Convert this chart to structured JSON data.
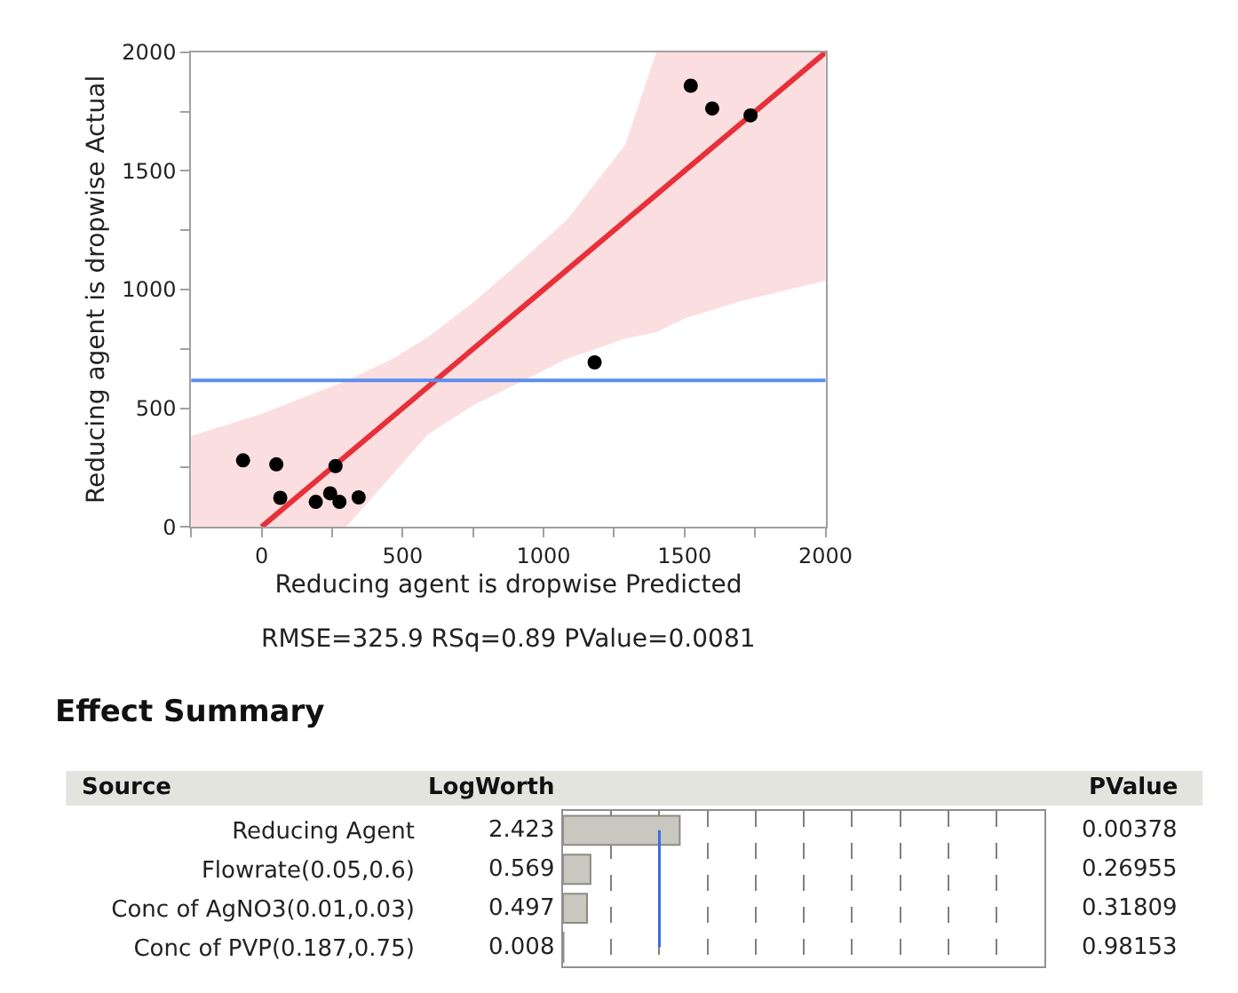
{
  "chart_data": [
    {
      "type": "scatter",
      "xlabel": "Reducing agent is dropwise Predicted",
      "ylabel": "Reducing agent is dropwise Actual",
      "annotations": [
        "RMSE=325.9 RSq=0.89 PValue=0.0081"
      ],
      "xlim": [
        -250,
        2000
      ],
      "ylim": [
        0,
        2000
      ],
      "xticks": [
        {
          "value": -250,
          "label": null
        },
        0,
        {
          "value": 250,
          "label": null
        },
        500,
        {
          "value": 750,
          "label": null
        },
        1000,
        {
          "value": 1250,
          "label": null
        },
        1500,
        {
          "value": 1750,
          "label": null
        },
        2000
      ],
      "yticks": [
        0,
        {
          "value": 250,
          "label": null
        },
        500,
        {
          "value": 750,
          "label": null
        },
        1000,
        {
          "value": 1250,
          "label": null
        },
        1500,
        {
          "value": 1750,
          "label": null
        },
        2000
      ],
      "grid": false,
      "ref_lines": [
        {
          "axis": "y",
          "value": 617,
          "color": "#5b8def"
        }
      ],
      "series": [
        {
          "type": "line",
          "color": "#e8303a",
          "marker": "none",
          "x": [
            -250,
            0,
            300,
            460,
            590,
            750,
            920,
            1080,
            1290,
            1400,
            1500,
            1700,
            2000
          ],
          "values": [
            null,
            0,
            300,
            460,
            590,
            750,
            920,
            1080,
            1290,
            1400,
            1500,
            1700,
            2000
          ],
          "lower": [
            0,
            0,
            0,
            215,
            390,
            512,
            612,
            707,
            793,
            820,
            878,
            951,
            1037
          ],
          "upper": [
            383,
            476,
            615,
            705,
            800,
            945,
            1120,
            1290,
            1610,
            2000,
            2000,
            2000,
            2000
          ]
        },
        {
          "type": "scatter",
          "color": "#000000",
          "marker": "circle",
          "x": [
            -66,
            52,
            66,
            192,
            243,
            262,
            276,
            344,
            1181,
            1522,
            1598,
            1734
          ],
          "values": [
            280,
            263,
            122,
            105,
            141,
            256,
            105,
            124,
            693,
            1859,
            1763,
            1734
          ]
        }
      ]
    },
    {
      "type": "bar",
      "orientation": "horizontal",
      "title": "Effect Summary",
      "categories": [
        "Reducing Agent",
        "Flowrate(0.05,0.6)",
        "Conc of AgNO3(0.01,0.03)",
        "Conc of PVP(0.187,0.75)"
      ],
      "values": [
        2.423,
        0.569,
        0.497,
        0.008
      ],
      "color": "#c8c8c0",
      "data_labels": true,
      "xlim": [
        0,
        10
      ],
      "xticks": [
        {
          "value": 1,
          "label": null
        },
        {
          "value": 2,
          "label": null
        },
        {
          "value": 3,
          "label": null
        },
        {
          "value": 4,
          "label": null
        },
        {
          "value": 5,
          "label": null
        },
        {
          "value": 6,
          "label": null
        },
        {
          "value": 7,
          "label": null
        },
        {
          "value": 8,
          "label": null
        },
        {
          "value": 9,
          "label": null
        }
      ],
      "grid": "x",
      "tick_labels": "y",
      "ref_lines": [
        {
          "axis": "x",
          "value": 2,
          "color": "#4169e1"
        }
      ],
      "annotations": [
        "Source",
        "LogWorth",
        "PValue",
        "0.00378",
        "0.26955",
        "0.31809",
        "0.98153"
      ]
    }
  ]
}
